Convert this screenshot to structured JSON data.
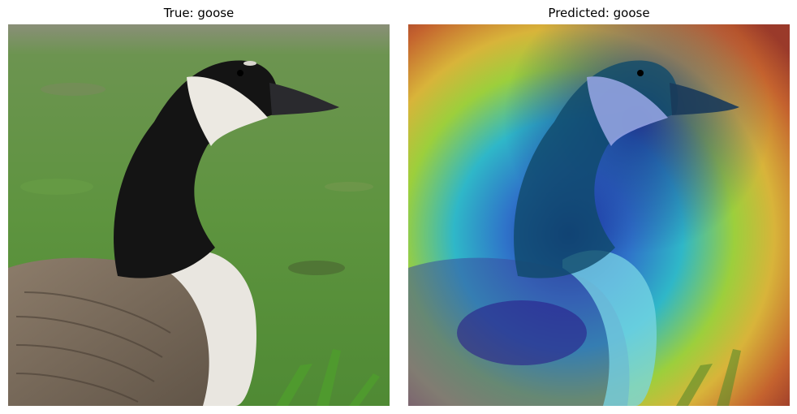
{
  "panels": [
    {
      "title": "True: goose",
      "image": "canada-goose-photo"
    },
    {
      "title": "Predicted: goose",
      "image": "canada-goose-gradcam-heatmap"
    }
  ]
}
